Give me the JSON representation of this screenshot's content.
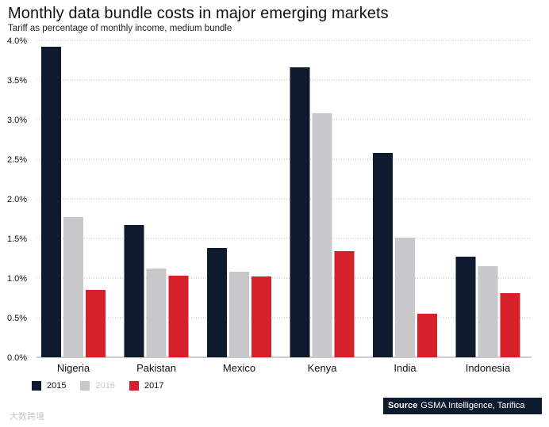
{
  "chart_data": {
    "type": "bar",
    "title": "Monthly data bundle costs in major emerging markets",
    "subtitle": "Tariff as percentage of monthly income, medium bundle",
    "categories": [
      "Nigeria",
      "Pakistan",
      "Mexico",
      "Kenya",
      "India",
      "Indonesia"
    ],
    "series": [
      {
        "name": "2015",
        "color": "#0e1a2d",
        "values": [
          3.92,
          1.67,
          1.38,
          3.66,
          2.58,
          1.27
        ]
      },
      {
        "name": "2016",
        "color": "#c8c8ca",
        "values": [
          1.77,
          1.12,
          1.08,
          3.08,
          1.51,
          1.15
        ]
      },
      {
        "name": "2017",
        "color": "#d6202a",
        "values": [
          0.85,
          1.03,
          1.02,
          1.34,
          0.55,
          0.81
        ]
      }
    ],
    "y_ticks": [
      "0.0%",
      "0.5%",
      "1.0%",
      "1.5%",
      "2.0%",
      "2.5%",
      "3.0%",
      "3.5%",
      "4.0%"
    ],
    "ylim": [
      0,
      4.0
    ],
    "xlabel": "",
    "ylabel": "",
    "grid": true,
    "legend_position": "bottom-left"
  },
  "source": {
    "label": "Source",
    "text": "GSMA Intelligence, Tarifica"
  },
  "watermark": "大数跨境"
}
